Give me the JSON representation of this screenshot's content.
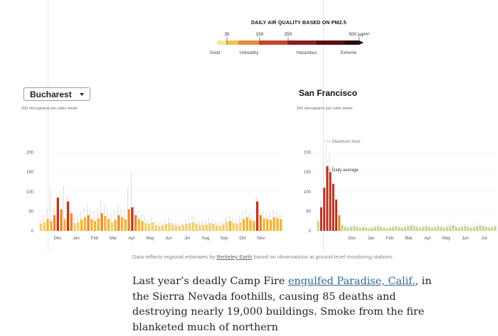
{
  "legend": {
    "title": "DAILY AIR QUALITY BASED ON PM2.5",
    "ticks": [
      "35",
      "150",
      "250",
      "500 µg/m³"
    ],
    "tick_values": [
      35,
      150,
      250,
      500
    ],
    "categories": [
      "Good",
      "Unhealthy",
      "Hazardous",
      "Extreme"
    ],
    "colors": [
      "#f2e6a0",
      "#f5c04a",
      "#e9893a",
      "#c8432a",
      "#8c1c1c",
      "#5a0c10",
      "#2a0a0c"
    ]
  },
  "dropdown": {
    "selected": "Bucharest",
    "icon": "caret-down-icon"
  },
  "sf": {
    "title": "San Francisco"
  },
  "unit_label": "250 micrograms per cubic meter",
  "chart_data": [
    {
      "type": "bar",
      "title": "Bucharest",
      "ylabel": "250 micrograms per cubic meter",
      "y_ticks": [
        "200",
        "150",
        "100",
        "50",
        "0"
      ],
      "ylim": [
        0,
        250
      ],
      "x_ticks": [
        "Dec",
        "Jan",
        "Feb",
        "Mar",
        "Apr",
        "May",
        "Jun",
        "Jul",
        "Aug",
        "Sep",
        "Oct",
        "Nov"
      ],
      "x_range_months": 12,
      "grid": true,
      "series": [
        {
          "values": [
            18,
            22,
            30,
            25,
            40,
            85,
            55,
            30,
            75,
            45,
            20,
            22,
            28,
            35,
            40,
            30,
            25,
            32,
            45,
            38,
            30,
            22,
            28,
            40,
            35,
            30,
            55,
            60,
            40,
            30,
            25,
            20,
            18,
            22,
            15,
            12,
            14,
            18,
            20,
            16,
            14,
            12,
            15,
            18,
            20,
            22,
            18,
            15,
            14,
            16,
            20,
            18,
            14,
            12,
            16,
            22,
            25,
            20,
            18,
            22,
            30,
            35,
            28,
            25,
            75,
            40,
            32,
            30,
            28,
            35,
            32,
            30
          ]
        },
        {
          "values": [
            30,
            40,
            55,
            110,
            60,
            50,
            40,
            115,
            90,
            60,
            35,
            40,
            50,
            60,
            70,
            55,
            50,
            60,
            80,
            65,
            55,
            45,
            55,
            65,
            60,
            55,
            110,
            150,
            65,
            50,
            45,
            35,
            30,
            35,
            25,
            22,
            25,
            30,
            35,
            28,
            25,
            22,
            25,
            30,
            35,
            38,
            30,
            25,
            24,
            28,
            35,
            30,
            25,
            22,
            28,
            35,
            40,
            35,
            30,
            38,
            50,
            58,
            45,
            40,
            90,
            60,
            50,
            48,
            45,
            55,
            50,
            45
          ]
        }
      ]
    },
    {
      "type": "bar",
      "title": "San Francisco",
      "ylabel": "250 micrograms per cubic meter",
      "y_ticks": [
        "200",
        "150",
        "100",
        "50",
        "0"
      ],
      "ylim": [
        0,
        250
      ],
      "x_ticks": [
        "Dec",
        "Jan",
        "Feb",
        "Mar",
        "Apr",
        "May",
        "Jun",
        "Jul",
        "Aug",
        "S"
      ],
      "annotations": [
        "Maximum hour",
        "Daily average"
      ],
      "grid": true,
      "series": [
        {
          "values": [
            25,
            60,
            110,
            165,
            150,
            120,
            80,
            40,
            15,
            10,
            8,
            10,
            12,
            10,
            8,
            10,
            8,
            6,
            8,
            10,
            12,
            10,
            8,
            6,
            8,
            10,
            12,
            10,
            8,
            10,
            12,
            14,
            12,
            10,
            8,
            10,
            12,
            10,
            8,
            10,
            12,
            10,
            8,
            10,
            12,
            14,
            10,
            8,
            10,
            12,
            10,
            8,
            10,
            12,
            14,
            12,
            10,
            8,
            10,
            12
          ]
        },
        {
          "values": [
            35,
            80,
            180,
            220,
            200,
            170,
            120,
            55,
            22,
            15,
            12,
            14,
            18,
            15,
            12,
            14,
            12,
            10,
            12,
            15,
            18,
            15,
            12,
            10,
            12,
            15,
            18,
            15,
            12,
            15,
            18,
            20,
            18,
            15,
            12,
            15,
            18,
            15,
            12,
            15,
            18,
            15,
            12,
            15,
            18,
            20,
            15,
            12,
            15,
            18,
            15,
            12,
            15,
            18,
            20,
            18,
            15,
            12,
            15,
            18
          ]
        }
      ]
    }
  ],
  "caption": {
    "before": "Data reflects regional estimates by ",
    "link": "Berkeley Earth",
    "after": " based on observations at ground-level monitoring stations."
  },
  "article": {
    "p1": "Last year’s deadly Camp Fire ",
    "link": "engulfed Paradise, Calif.",
    "p2": ", in the Sierra Nevada foothills, causing 85 deaths and destroying nearly 19,000 buildings. Smoke from the fire blanketed much of northern"
  }
}
